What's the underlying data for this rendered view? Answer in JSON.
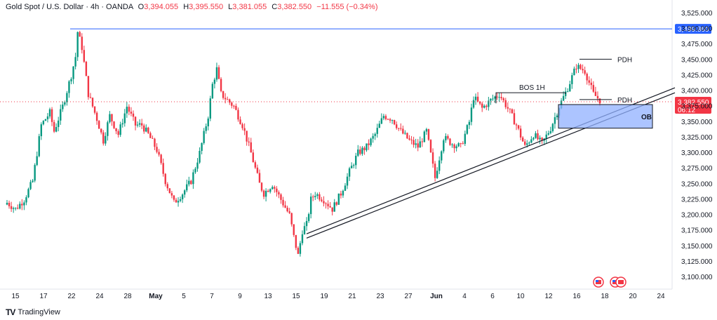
{
  "header": {
    "symbol": "Gold Spot / U.S. Dollar · 4h · OANDA",
    "open_label": "O",
    "open": "3,394.055",
    "high_label": "H",
    "high": "3,395.550",
    "low_label": "L",
    "low": "3,381.055",
    "close_label": "C",
    "close": "3,382.550",
    "change": "−11.555 (−0.34%)"
  },
  "brand": "TradingView",
  "colors": {
    "up": "#089981",
    "down": "#f23645",
    "accent": "#2962ff",
    "ob": "#90b0ff"
  },
  "chart_data": {
    "type": "candlestick",
    "ylim": [
      3090,
      3535
    ],
    "y_ticks": [
      "3,525.000",
      "3,500.000",
      "3,475.000",
      "3,450.000",
      "3,425.000",
      "3,400.000",
      "3,375.000",
      "3,350.000",
      "3,325.000",
      "3,300.000",
      "3,275.000",
      "3,250.000",
      "3,225.000",
      "3,200.000",
      "3,175.000",
      "3,150.000",
      "3,125.000",
      "3,100.000"
    ],
    "x_ticks": [
      "15",
      "17",
      "22",
      "24",
      "28",
      "May",
      "5",
      "7",
      "9",
      "13",
      "15",
      "19",
      "21",
      "23",
      "27",
      "Jun",
      "4",
      "6",
      "10",
      "12",
      "16",
      "18",
      "20",
      "24"
    ],
    "last_price": {
      "value": 3382.55,
      "label": "3,382.550",
      "countdown": "06:12"
    },
    "high_line": {
      "value": 3499.86,
      "label": "3,499.860"
    },
    "anchors": [
      [
        0,
        3220
      ],
      [
        4,
        3210
      ],
      [
        8,
        3225
      ],
      [
        12,
        3255
      ],
      [
        16,
        3345
      ],
      [
        20,
        3365
      ],
      [
        22,
        3335
      ],
      [
        26,
        3375
      ],
      [
        30,
        3425
      ],
      [
        32,
        3455
      ],
      [
        33,
        3495
      ],
      [
        35,
        3470
      ],
      [
        38,
        3395
      ],
      [
        42,
        3355
      ],
      [
        45,
        3320
      ],
      [
        48,
        3360
      ],
      [
        52,
        3330
      ],
      [
        56,
        3375
      ],
      [
        60,
        3345
      ],
      [
        63,
        3345
      ],
      [
        66,
        3330
      ],
      [
        70,
        3305
      ],
      [
        74,
        3255
      ],
      [
        78,
        3220
      ],
      [
        82,
        3235
      ],
      [
        86,
        3255
      ],
      [
        90,
        3300
      ],
      [
        94,
        3360
      ],
      [
        96,
        3410
      ],
      [
        98,
        3435
      ],
      [
        100,
        3395
      ],
      [
        103,
        3385
      ],
      [
        106,
        3375
      ],
      [
        110,
        3345
      ],
      [
        114,
        3300
      ],
      [
        118,
        3250
      ],
      [
        120,
        3235
      ],
      [
        124,
        3250
      ],
      [
        128,
        3225
      ],
      [
        132,
        3200
      ],
      [
        134,
        3165
      ],
      [
        136,
        3135
      ],
      [
        138,
        3175
      ],
      [
        140,
        3185
      ],
      [
        142,
        3225
      ],
      [
        144,
        3235
      ],
      [
        148,
        3225
      ],
      [
        152,
        3210
      ],
      [
        156,
        3235
      ],
      [
        160,
        3270
      ],
      [
        164,
        3300
      ],
      [
        168,
        3310
      ],
      [
        172,
        3330
      ],
      [
        176,
        3360
      ],
      [
        180,
        3355
      ],
      [
        184,
        3335
      ],
      [
        188,
        3320
      ],
      [
        192,
        3310
      ],
      [
        196,
        3335
      ],
      [
        200,
        3260
      ],
      [
        204,
        3325
      ],
      [
        208,
        3315
      ],
      [
        212,
        3310
      ],
      [
        216,
        3350
      ],
      [
        218,
        3390
      ],
      [
        222,
        3372
      ],
      [
        226,
        3385
      ],
      [
        230,
        3395
      ],
      [
        234,
        3372
      ],
      [
        238,
        3345
      ],
      [
        242,
        3310
      ],
      [
        246,
        3330
      ],
      [
        250,
        3315
      ],
      [
        254,
        3340
      ],
      [
        258,
        3375
      ],
      [
        262,
        3405
      ],
      [
        266,
        3440
      ],
      [
        270,
        3432
      ],
      [
        274,
        3395
      ],
      [
        277,
        3385
      ]
    ],
    "annotations": [
      {
        "label": "BOS 1H",
        "value": 3397
      },
      {
        "label": "PDH",
        "value": 3451
      },
      {
        "label": "PDH",
        "value": 3386
      },
      {
        "label": "OB",
        "top": 3378,
        "bottom": 3340
      }
    ]
  }
}
